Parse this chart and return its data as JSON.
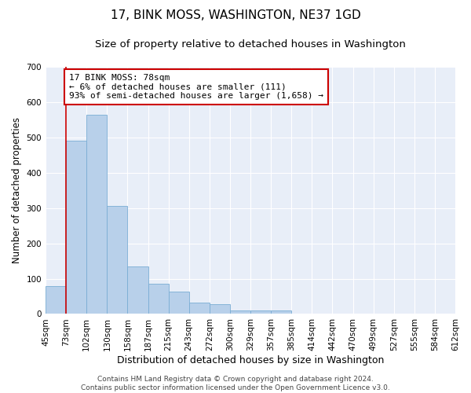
{
  "title": "17, BINK MOSS, WASHINGTON, NE37 1GD",
  "subtitle": "Size of property relative to detached houses in Washington",
  "xlabel": "Distribution of detached houses by size in Washington",
  "ylabel": "Number of detached properties",
  "footer_line1": "Contains HM Land Registry data © Crown copyright and database right 2024.",
  "footer_line2": "Contains public sector information licensed under the Open Government Licence v3.0.",
  "bin_labels": [
    "45sqm",
    "73sqm",
    "102sqm",
    "130sqm",
    "158sqm",
    "187sqm",
    "215sqm",
    "243sqm",
    "272sqm",
    "300sqm",
    "329sqm",
    "357sqm",
    "385sqm",
    "414sqm",
    "442sqm",
    "470sqm",
    "499sqm",
    "527sqm",
    "555sqm",
    "584sqm",
    "612sqm"
  ],
  "bar_heights": [
    80,
    490,
    565,
    305,
    135,
    85,
    63,
    32,
    27,
    10,
    10,
    10,
    0,
    0,
    0,
    0,
    0,
    0,
    0,
    0
  ],
  "bar_color": "#b8d0ea",
  "bar_edge_color": "#7aadd4",
  "background_color": "#e8eef8",
  "grid_color": "#ffffff",
  "vline_x": 1.0,
  "vline_color": "#cc0000",
  "annotation_line1": "17 BINK MOSS: 78sqm",
  "annotation_line2": "← 6% of detached houses are smaller (111)",
  "annotation_line3": "93% of semi-detached houses are larger (1,658) →",
  "annotation_box_color": "#ffffff",
  "annotation_box_edge_color": "#cc0000",
  "ylim": [
    0,
    700
  ],
  "yticks": [
    0,
    100,
    200,
    300,
    400,
    500,
    600,
    700
  ],
  "title_fontsize": 11,
  "subtitle_fontsize": 9.5,
  "xlabel_fontsize": 9,
  "ylabel_fontsize": 8.5,
  "tick_fontsize": 7.5,
  "annotation_fontsize": 8,
  "footer_fontsize": 6.5
}
